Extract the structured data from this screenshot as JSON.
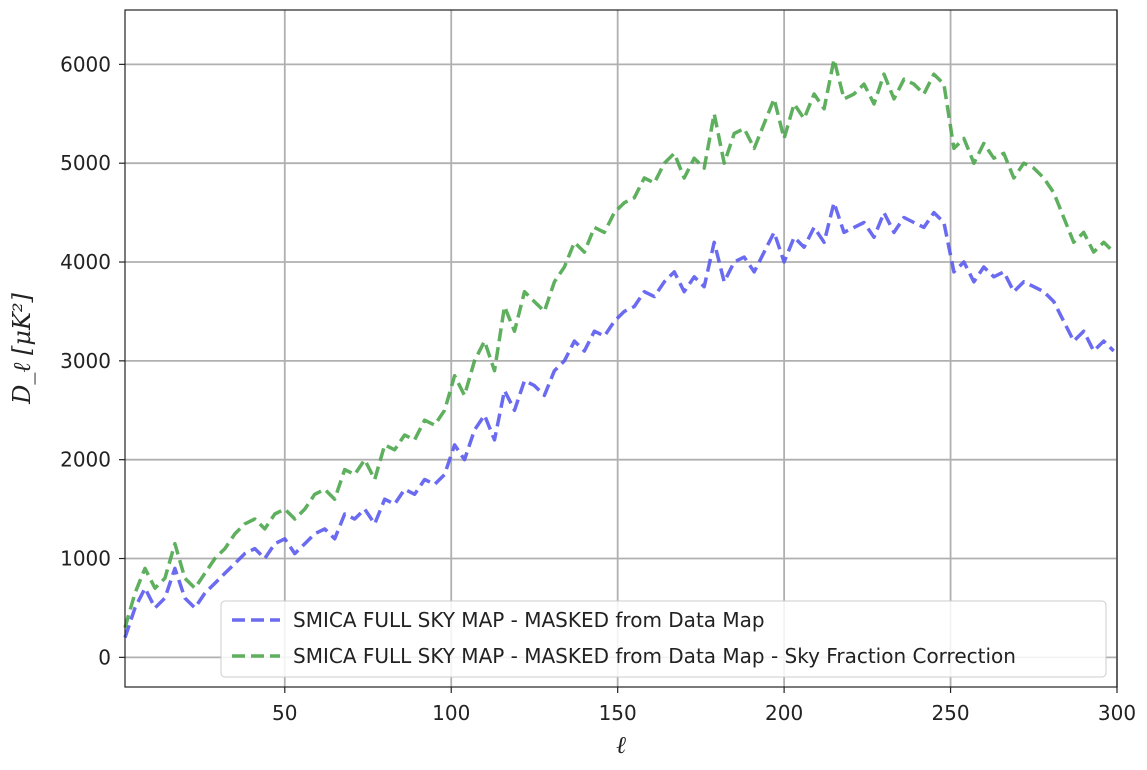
{
  "chart_data": {
    "type": "line",
    "title": "",
    "xlabel": "ℓ",
    "ylabel": "D_ℓ [μK²]",
    "xlim": [
      2,
      300
    ],
    "ylim": [
      -300,
      6550
    ],
    "xticks": [
      50,
      100,
      150,
      200,
      250,
      300
    ],
    "xtick_labels": [
      "50",
      "100",
      "150",
      "200",
      "250",
      "300"
    ],
    "yticks": [
      0,
      1000,
      2000,
      3000,
      4000,
      5000,
      6000
    ],
    "ytick_labels": [
      "0",
      "1000",
      "2000",
      "3000",
      "4000",
      "5000",
      "6000"
    ],
    "grid": true,
    "legend_position": "lower-right",
    "series": [
      {
        "name": "SMICA FULL SKY MAP - MASKED from Data Map",
        "color": "#5b5bf0",
        "style": "dashed",
        "x": [
          2,
          5,
          8,
          11,
          14,
          17,
          20,
          23,
          26,
          29,
          32,
          35,
          38,
          41,
          44,
          47,
          50,
          53,
          56,
          59,
          62,
          65,
          68,
          71,
          74,
          77,
          80,
          83,
          86,
          89,
          92,
          95,
          98,
          101,
          104,
          107,
          110,
          113,
          116,
          119,
          122,
          125,
          128,
          131,
          134,
          137,
          140,
          143,
          146,
          149,
          152,
          155,
          158,
          161,
          164,
          167,
          170,
          173,
          176,
          179,
          182,
          185,
          188,
          191,
          194,
          197,
          200,
          203,
          206,
          209,
          212,
          215,
          218,
          221,
          224,
          227,
          230,
          233,
          236,
          239,
          242,
          245,
          248,
          251,
          254,
          257,
          260,
          263,
          266,
          269,
          272,
          275,
          278,
          281,
          284,
          287,
          290,
          293,
          296,
          299
        ],
        "y": [
          200,
          500,
          700,
          500,
          600,
          900,
          600,
          500,
          650,
          750,
          850,
          950,
          1050,
          1100,
          1000,
          1150,
          1200,
          1050,
          1150,
          1250,
          1300,
          1200,
          1450,
          1400,
          1500,
          1350,
          1600,
          1550,
          1700,
          1650,
          1800,
          1750,
          1850,
          2150,
          2000,
          2300,
          2450,
          2200,
          2700,
          2500,
          2800,
          2750,
          2650,
          2900,
          3000,
          3200,
          3100,
          3300,
          3250,
          3400,
          3500,
          3550,
          3700,
          3650,
          3800,
          3900,
          3700,
          3850,
          3750,
          4200,
          3800,
          4000,
          4050,
          3900,
          4100,
          4300,
          4000,
          4250,
          4150,
          4350,
          4200,
          4600,
          4300,
          4350,
          4400,
          4250,
          4500,
          4300,
          4450,
          4400,
          4350,
          4500,
          4400,
          3900,
          4000,
          3800,
          3950,
          3850,
          3900,
          3700,
          3800,
          3750,
          3700,
          3600,
          3400,
          3200,
          3300,
          3100,
          3200,
          3100
        ]
      },
      {
        "name": "SMICA FULL SKY MAP - MASKED from Data Map - Sky Fraction Correction",
        "color": "#4ca64c",
        "style": "dashed",
        "x": [
          2,
          5,
          8,
          11,
          14,
          17,
          20,
          23,
          26,
          29,
          32,
          35,
          38,
          41,
          44,
          47,
          50,
          53,
          56,
          59,
          62,
          65,
          68,
          71,
          74,
          77,
          80,
          83,
          86,
          89,
          92,
          95,
          98,
          101,
          104,
          107,
          110,
          113,
          116,
          119,
          122,
          125,
          128,
          131,
          134,
          137,
          140,
          143,
          146,
          149,
          152,
          155,
          158,
          161,
          164,
          167,
          170,
          173,
          176,
          179,
          182,
          185,
          188,
          191,
          194,
          197,
          200,
          203,
          206,
          209,
          212,
          215,
          218,
          221,
          224,
          227,
          230,
          233,
          236,
          239,
          242,
          245,
          248,
          251,
          254,
          257,
          260,
          263,
          266,
          269,
          272,
          275,
          278,
          281,
          284,
          287,
          290,
          293,
          296,
          299
        ],
        "y": [
          300,
          650,
          900,
          700,
          800,
          1150,
          800,
          700,
          850,
          1000,
          1100,
          1250,
          1350,
          1400,
          1300,
          1450,
          1500,
          1400,
          1500,
          1650,
          1700,
          1600,
          1900,
          1850,
          2000,
          1800,
          2150,
          2100,
          2250,
          2200,
          2400,
          2350,
          2500,
          2850,
          2650,
          3000,
          3200,
          2900,
          3550,
          3300,
          3700,
          3600,
          3500,
          3800,
          3950,
          4200,
          4100,
          4350,
          4300,
          4500,
          4600,
          4650,
          4850,
          4800,
          5000,
          5100,
          4850,
          5050,
          4950,
          5500,
          5000,
          5300,
          5350,
          5150,
          5400,
          5650,
          5250,
          5600,
          5450,
          5700,
          5550,
          6050,
          5650,
          5700,
          5800,
          5600,
          5900,
          5650,
          5850,
          5800,
          5700,
          5900,
          5800,
          5150,
          5250,
          5000,
          5200,
          5050,
          5100,
          4850,
          5000,
          4950,
          4850,
          4700,
          4450,
          4200,
          4300,
          4100,
          4200,
          4100
        ]
      }
    ]
  }
}
